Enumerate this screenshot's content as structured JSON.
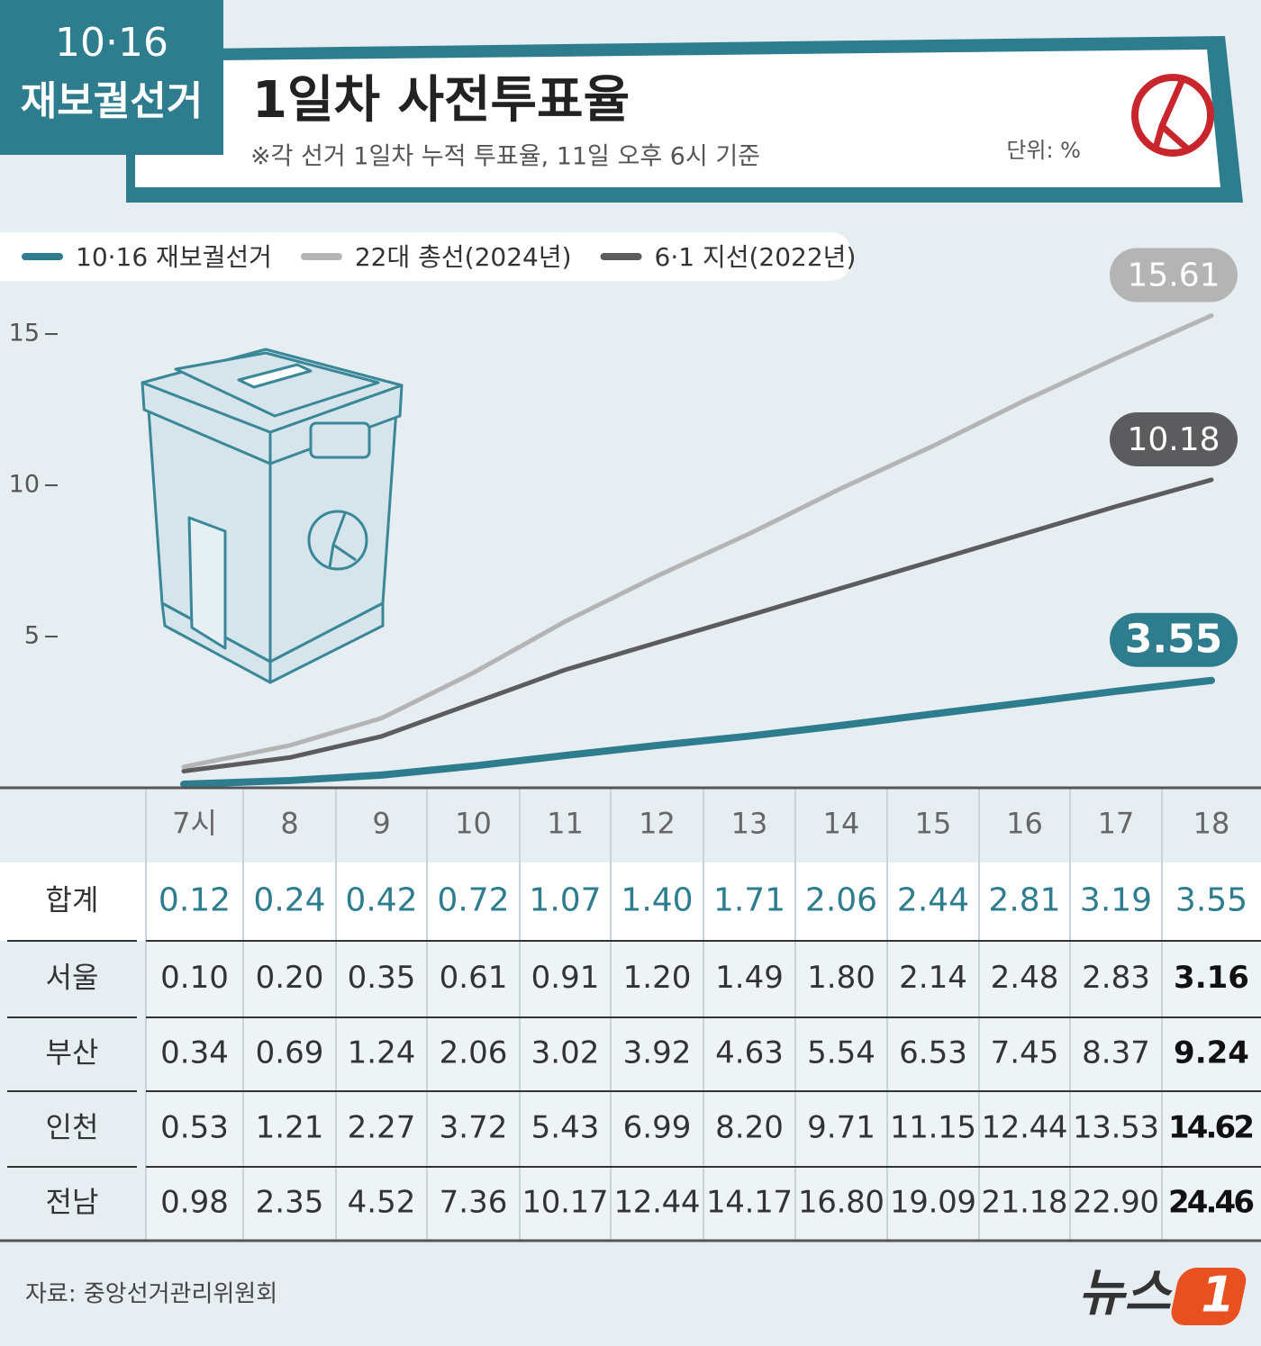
{
  "header": {
    "badge_top": "10·16",
    "badge_bottom": "재보궐선거",
    "title": "1일차 사전투표율",
    "subtitle": "※각 선거 1일차 누적 투표율, 11일 오후 6시 기준",
    "unit": "단위: %"
  },
  "chart_data": {
    "type": "line",
    "categories": [
      "7시",
      "8",
      "9",
      "10",
      "11",
      "12",
      "13",
      "14",
      "15",
      "16",
      "17",
      "18"
    ],
    "ylim": [
      0,
      16
    ],
    "yticks": [
      5,
      10,
      15
    ],
    "series": [
      {
        "name": "10·16 재보궐선거",
        "color": "#2e7d8e",
        "values": [
          0.12,
          0.24,
          0.42,
          0.72,
          1.07,
          1.4,
          1.71,
          2.06,
          2.44,
          2.81,
          3.19,
          3.55
        ],
        "value_labels": [
          "0.12",
          "0.24",
          "0.42",
          "0.72",
          "1.07",
          "1.40",
          "1.71",
          "2.06",
          "2.44",
          "2.81",
          "3.19",
          "3.55"
        ]
      },
      {
        "name": "22대 총선(2024년)",
        "color": "#b4b4b4",
        "values": [
          0.69,
          1.4,
          2.3,
          3.8,
          5.5,
          7.0,
          8.4,
          9.9,
          11.3,
          12.8,
          14.2,
          15.61
        ]
      },
      {
        "name": "6·1 지선(2022년)",
        "color": "#5c5c5e",
        "values": [
          0.55,
          1.0,
          1.7,
          2.8,
          3.9,
          4.8,
          5.7,
          6.6,
          7.5,
          8.4,
          9.3,
          10.18
        ]
      }
    ]
  },
  "table": {
    "total_label": "합계",
    "rows": [
      {
        "label": "서울",
        "values": [
          "0.10",
          "0.20",
          "0.35",
          "0.61",
          "0.91",
          "1.20",
          "1.49",
          "1.80",
          "2.14",
          "2.48",
          "2.83",
          "3.16"
        ]
      },
      {
        "label": "부산",
        "values": [
          "0.34",
          "0.69",
          "1.24",
          "2.06",
          "3.02",
          "3.92",
          "4.63",
          "5.54",
          "6.53",
          "7.45",
          "8.37",
          "9.24"
        ]
      },
      {
        "label": "인천",
        "values": [
          "0.53",
          "1.21",
          "2.27",
          "3.72",
          "5.43",
          "6.99",
          "8.20",
          "9.71",
          "11.15",
          "12.44",
          "13.53",
          "14.62"
        ]
      },
      {
        "label": "전남",
        "values": [
          "0.98",
          "2.35",
          "4.52",
          "7.36",
          "10.17",
          "12.44",
          "14.17",
          "16.80",
          "19.09",
          "21.18",
          "22.90",
          "24.46"
        ]
      }
    ]
  },
  "footer": {
    "source": "자료: 중앙선거관리위원회",
    "logo": "뉴스",
    "logo_mark": "1"
  }
}
